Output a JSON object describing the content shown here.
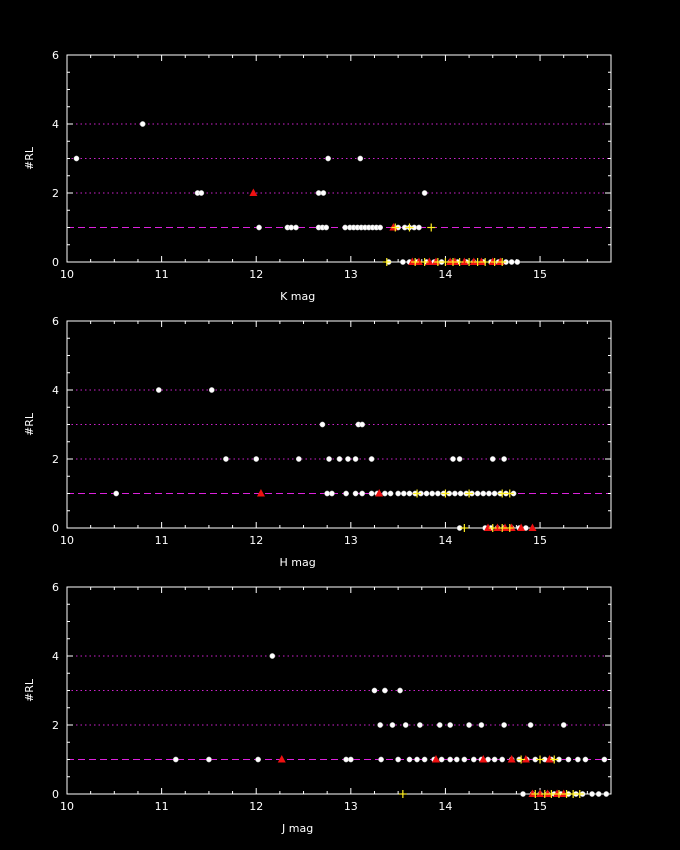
{
  "colors": {
    "background": "#000000",
    "frame": "#ffffff",
    "dotted_grid": "#cc22cc",
    "dashed_line": "#dd22dd",
    "white_points": "#ffffff",
    "red_points": "#ee1111",
    "yellow_points": "#ffee22"
  },
  "chart_data": [
    {
      "type": "scatter",
      "xlabel": "K mag",
      "ylabel": "#RL",
      "xlim": [
        10,
        15.75
      ],
      "ylim": [
        0,
        6
      ],
      "xticks": [
        10,
        11,
        12,
        13,
        14,
        15
      ],
      "yticks": [
        0,
        2,
        4,
        6
      ],
      "dotted_levels": [
        2,
        3,
        4
      ],
      "dashed_level": 1,
      "series": [
        {
          "color": "white",
          "marker": "dot",
          "points": [
            [
              10.1,
              3
            ],
            [
              10.8,
              4
            ],
            [
              11.38,
              2
            ],
            [
              11.42,
              2
            ],
            [
              12.03,
              1
            ],
            [
              12.33,
              1
            ],
            [
              12.37,
              1
            ],
            [
              12.42,
              1
            ],
            [
              12.66,
              1
            ],
            [
              12.7,
              1
            ],
            [
              12.74,
              1
            ],
            [
              12.66,
              2
            ],
            [
              12.71,
              2
            ],
            [
              12.76,
              3
            ],
            [
              13.1,
              3
            ],
            [
              12.94,
              1
            ],
            [
              12.99,
              1
            ],
            [
              13.03,
              1
            ],
            [
              13.07,
              1
            ],
            [
              13.11,
              1
            ],
            [
              13.15,
              1
            ],
            [
              13.19,
              1
            ],
            [
              13.23,
              1
            ],
            [
              13.27,
              1
            ],
            [
              13.31,
              1
            ],
            [
              13.5,
              1
            ],
            [
              13.57,
              1
            ],
            [
              13.62,
              1
            ],
            [
              13.67,
              1
            ],
            [
              13.72,
              1
            ],
            [
              13.78,
              2
            ],
            [
              13.4,
              0
            ],
            [
              13.55,
              0
            ],
            [
              13.62,
              0
            ],
            [
              13.7,
              0
            ],
            [
              13.8,
              0
            ],
            [
              13.88,
              0
            ],
            [
              13.96,
              0
            ],
            [
              14.05,
              0
            ],
            [
              14.13,
              0
            ],
            [
              14.22,
              0
            ],
            [
              14.3,
              0
            ],
            [
              14.4,
              0
            ],
            [
              14.48,
              0
            ],
            [
              14.56,
              0
            ],
            [
              14.64,
              0
            ],
            [
              14.7,
              0
            ],
            [
              14.76,
              0
            ]
          ]
        },
        {
          "color": "red",
          "marker": "triangle",
          "points": [
            [
              11.97,
              2
            ],
            [
              13.45,
              1
            ],
            [
              13.65,
              0
            ],
            [
              13.72,
              0
            ],
            [
              13.83,
              0
            ],
            [
              13.9,
              0
            ],
            [
              14.05,
              0
            ],
            [
              14.1,
              0
            ],
            [
              14.2,
              0
            ],
            [
              14.3,
              0
            ],
            [
              14.38,
              0
            ],
            [
              14.5,
              0
            ],
            [
              14.58,
              0
            ]
          ]
        },
        {
          "color": "yellow",
          "marker": "plus",
          "points": [
            [
              13.38,
              0
            ],
            [
              13.47,
              1
            ],
            [
              13.62,
              1
            ],
            [
              13.85,
              1
            ],
            [
              13.68,
              0
            ],
            [
              13.78,
              0
            ],
            [
              13.92,
              0
            ],
            [
              14.0,
              0
            ],
            [
              14.08,
              0
            ],
            [
              14.15,
              0
            ],
            [
              14.25,
              0
            ],
            [
              14.34,
              0
            ],
            [
              14.42,
              0
            ],
            [
              14.52,
              0
            ],
            [
              14.6,
              0
            ]
          ]
        }
      ]
    },
    {
      "type": "scatter",
      "xlabel": "H mag",
      "ylabel": "#RL",
      "xlim": [
        10,
        15.75
      ],
      "ylim": [
        0,
        6
      ],
      "xticks": [
        10,
        11,
        12,
        13,
        14,
        15
      ],
      "yticks": [
        0,
        2,
        4,
        6
      ],
      "dotted_levels": [
        2,
        3,
        4
      ],
      "dashed_level": 1,
      "series": [
        {
          "color": "white",
          "marker": "dot",
          "points": [
            [
              10.52,
              1
            ],
            [
              10.97,
              4
            ],
            [
              11.53,
              4
            ],
            [
              11.68,
              2
            ],
            [
              12.0,
              2
            ],
            [
              12.45,
              2
            ],
            [
              12.7,
              3
            ],
            [
              13.08,
              3
            ],
            [
              13.12,
              3
            ],
            [
              12.77,
              2
            ],
            [
              12.88,
              2
            ],
            [
              12.97,
              2
            ],
            [
              13.05,
              2
            ],
            [
              13.22,
              2
            ],
            [
              14.08,
              2
            ],
            [
              14.15,
              2
            ],
            [
              14.5,
              2
            ],
            [
              14.62,
              2
            ],
            [
              12.75,
              1
            ],
            [
              12.8,
              1
            ],
            [
              12.95,
              1
            ],
            [
              13.05,
              1
            ],
            [
              13.12,
              1
            ],
            [
              13.22,
              1
            ],
            [
              13.28,
              1
            ],
            [
              13.36,
              1
            ],
            [
              13.42,
              1
            ],
            [
              13.5,
              1
            ],
            [
              13.56,
              1
            ],
            [
              13.62,
              1
            ],
            [
              13.68,
              1
            ],
            [
              13.74,
              1
            ],
            [
              13.8,
              1
            ],
            [
              13.86,
              1
            ],
            [
              13.92,
              1
            ],
            [
              13.98,
              1
            ],
            [
              14.04,
              1
            ],
            [
              14.1,
              1
            ],
            [
              14.16,
              1
            ],
            [
              14.22,
              1
            ],
            [
              14.28,
              1
            ],
            [
              14.34,
              1
            ],
            [
              14.4,
              1
            ],
            [
              14.46,
              1
            ],
            [
              14.52,
              1
            ],
            [
              14.58,
              1
            ],
            [
              14.64,
              1
            ],
            [
              14.72,
              1
            ],
            [
              14.15,
              0
            ],
            [
              14.42,
              0
            ],
            [
              14.48,
              0
            ],
            [
              14.55,
              0
            ],
            [
              14.62,
              0
            ],
            [
              14.7,
              0
            ],
            [
              14.78,
              0
            ],
            [
              14.85,
              0
            ]
          ]
        },
        {
          "color": "red",
          "marker": "triangle",
          "points": [
            [
              12.05,
              1
            ],
            [
              13.3,
              1
            ],
            [
              14.45,
              0
            ],
            [
              14.55,
              0
            ],
            [
              14.63,
              0
            ],
            [
              14.7,
              0
            ],
            [
              14.8,
              0
            ],
            [
              14.92,
              0
            ]
          ]
        },
        {
          "color": "yellow",
          "marker": "plus",
          "points": [
            [
              14.2,
              0
            ],
            [
              14.5,
              0
            ],
            [
              14.6,
              0
            ],
            [
              14.68,
              0
            ],
            [
              13.7,
              1
            ],
            [
              14.0,
              1
            ],
            [
              14.25,
              1
            ],
            [
              14.6,
              1
            ],
            [
              14.68,
              1
            ]
          ]
        }
      ]
    },
    {
      "type": "scatter",
      "xlabel": "J mag",
      "ylabel": "#RL",
      "xlim": [
        10,
        15.75
      ],
      "ylim": [
        0,
        6
      ],
      "xticks": [
        10,
        11,
        12,
        13,
        14,
        15
      ],
      "yticks": [
        0,
        2,
        4,
        6
      ],
      "dotted_levels": [
        2,
        3,
        4
      ],
      "dashed_level": 1,
      "series": [
        {
          "color": "white",
          "marker": "dot",
          "points": [
            [
              11.15,
              1
            ],
            [
              11.5,
              1
            ],
            [
              12.02,
              1
            ],
            [
              12.17,
              4
            ],
            [
              12.95,
              1
            ],
            [
              13.0,
              1
            ],
            [
              13.25,
              3
            ],
            [
              13.36,
              3
            ],
            [
              13.52,
              3
            ],
            [
              13.31,
              2
            ],
            [
              13.44,
              2
            ],
            [
              13.58,
              2
            ],
            [
              13.73,
              2
            ],
            [
              13.94,
              2
            ],
            [
              14.05,
              2
            ],
            [
              14.25,
              2
            ],
            [
              14.38,
              2
            ],
            [
              14.62,
              2
            ],
            [
              14.9,
              2
            ],
            [
              15.25,
              2
            ],
            [
              13.32,
              1
            ],
            [
              13.5,
              1
            ],
            [
              13.62,
              1
            ],
            [
              13.7,
              1
            ],
            [
              13.78,
              1
            ],
            [
              13.88,
              1
            ],
            [
              13.96,
              1
            ],
            [
              14.05,
              1
            ],
            [
              14.12,
              1
            ],
            [
              14.2,
              1
            ],
            [
              14.3,
              1
            ],
            [
              14.38,
              1
            ],
            [
              14.45,
              1
            ],
            [
              14.52,
              1
            ],
            [
              14.6,
              1
            ],
            [
              14.7,
              1
            ],
            [
              14.78,
              1
            ],
            [
              14.86,
              1
            ],
            [
              14.95,
              1
            ],
            [
              15.05,
              1
            ],
            [
              15.12,
              1
            ],
            [
              15.2,
              1
            ],
            [
              15.3,
              1
            ],
            [
              15.4,
              1
            ],
            [
              15.48,
              1
            ],
            [
              15.68,
              1
            ],
            [
              14.82,
              0
            ],
            [
              14.92,
              0
            ],
            [
              15.0,
              0
            ],
            [
              15.08,
              0
            ],
            [
              15.15,
              0
            ],
            [
              15.22,
              0
            ],
            [
              15.3,
              0
            ],
            [
              15.38,
              0
            ],
            [
              15.45,
              0
            ],
            [
              15.55,
              0
            ],
            [
              15.62,
              0
            ],
            [
              15.7,
              0
            ]
          ]
        },
        {
          "color": "red",
          "marker": "triangle",
          "points": [
            [
              12.27,
              1
            ],
            [
              13.9,
              1
            ],
            [
              14.4,
              1
            ],
            [
              14.7,
              1
            ],
            [
              14.85,
              1
            ],
            [
              15.1,
              1
            ],
            [
              14.92,
              0
            ],
            [
              15.0,
              0
            ],
            [
              15.08,
              0
            ],
            [
              15.18,
              0
            ],
            [
              15.25,
              0
            ]
          ]
        },
        {
          "color": "yellow",
          "marker": "plus",
          "points": [
            [
              13.55,
              0
            ],
            [
              14.8,
              1
            ],
            [
              15.0,
              1
            ],
            [
              15.15,
              1
            ],
            [
              14.95,
              0
            ],
            [
              15.05,
              0
            ],
            [
              15.12,
              0
            ],
            [
              15.2,
              0
            ],
            [
              15.28,
              0
            ],
            [
              15.35,
              0
            ],
            [
              15.42,
              0
            ]
          ]
        }
      ]
    }
  ]
}
